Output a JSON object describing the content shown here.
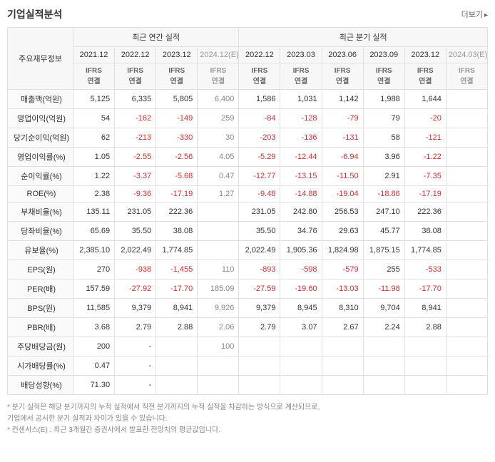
{
  "title": "기업실적분석",
  "more_link": "더보기",
  "group_headers": {
    "annual": "최근 연간 실적",
    "quarterly": "최근 분기 실적"
  },
  "first_col_header": "주요재무정보",
  "periods": {
    "annual": [
      "2021.12",
      "2022.12",
      "2023.12",
      "2024.12(E)"
    ],
    "quarterly": [
      "2022.12",
      "2023.03",
      "2023.06",
      "2023.09",
      "2023.12",
      "2024.03(E)"
    ]
  },
  "sub_header": "IFRS 연결",
  "rows": [
    {
      "label": "매출액(억원)",
      "annual": [
        "5,125",
        "6,335",
        "5,805",
        "6,400"
      ],
      "quarterly": [
        "1,586",
        "1,031",
        "1,142",
        "1,988",
        "1,644",
        ""
      ]
    },
    {
      "label": "영업이익(억원)",
      "annual": [
        "54",
        "-162",
        "-149",
        "259"
      ],
      "quarterly": [
        "-84",
        "-128",
        "-79",
        "79",
        "-20",
        ""
      ]
    },
    {
      "label": "당기순이익(억원)",
      "annual": [
        "62",
        "-213",
        "-330",
        "30"
      ],
      "quarterly": [
        "-203",
        "-136",
        "-131",
        "58",
        "-121",
        ""
      ]
    },
    {
      "label": "영업이익률(%)",
      "annual": [
        "1.05",
        "-2.55",
        "-2.56",
        "4.05"
      ],
      "quarterly": [
        "-5.29",
        "-12.44",
        "-6.94",
        "3.96",
        "-1.22",
        ""
      ]
    },
    {
      "label": "순이익률(%)",
      "annual": [
        "1.22",
        "-3.37",
        "-5.68",
        "0.47"
      ],
      "quarterly": [
        "-12.77",
        "-13.15",
        "-11.50",
        "2.91",
        "-7.35",
        ""
      ]
    },
    {
      "label": "ROE(%)",
      "annual": [
        "2.38",
        "-9.36",
        "-17.19",
        "1.27"
      ],
      "quarterly": [
        "-9.48",
        "-14.88",
        "-19.04",
        "-18.86",
        "-17.19",
        ""
      ]
    },
    {
      "label": "부채비율(%)",
      "annual": [
        "135.11",
        "231.05",
        "222.36",
        ""
      ],
      "quarterly": [
        "231.05",
        "242.80",
        "256.53",
        "247.10",
        "222.36",
        ""
      ]
    },
    {
      "label": "당좌비율(%)",
      "annual": [
        "65.69",
        "35.50",
        "38.08",
        ""
      ],
      "quarterly": [
        "35.50",
        "34.76",
        "29.63",
        "45.77",
        "38.08",
        ""
      ]
    },
    {
      "label": "유보율(%)",
      "annual": [
        "2,385.10",
        "2,022.49",
        "1,774.85",
        ""
      ],
      "quarterly": [
        "2,022.49",
        "1,905.36",
        "1,824.98",
        "1,875.15",
        "1,774.85",
        ""
      ]
    },
    {
      "label": "EPS(원)",
      "annual": [
        "270",
        "-938",
        "-1,455",
        "110"
      ],
      "quarterly": [
        "-893",
        "-598",
        "-579",
        "255",
        "-533",
        ""
      ]
    },
    {
      "label": "PER(배)",
      "annual": [
        "157.59",
        "-27.92",
        "-17.70",
        "185.09"
      ],
      "quarterly": [
        "-27.59",
        "-19.60",
        "-13.03",
        "-11.98",
        "-17.70",
        ""
      ]
    },
    {
      "label": "BPS(원)",
      "annual": [
        "11,585",
        "9,379",
        "8,941",
        "9,926"
      ],
      "quarterly": [
        "9,379",
        "8,945",
        "8,310",
        "9,704",
        "8,941",
        ""
      ]
    },
    {
      "label": "PBR(배)",
      "annual": [
        "3.68",
        "2.79",
        "2.88",
        "2.06"
      ],
      "quarterly": [
        "2.79",
        "3.07",
        "2.67",
        "2.24",
        "2.88",
        ""
      ]
    },
    {
      "label": "주당배당금(원)",
      "annual": [
        "200",
        "-",
        "",
        "100"
      ],
      "quarterly": [
        "",
        "",
        "",
        "",
        "",
        ""
      ]
    },
    {
      "label": "시가배당률(%)",
      "annual": [
        "0.47",
        "-",
        "",
        ""
      ],
      "quarterly": [
        "",
        "",
        "",
        "",
        "",
        ""
      ]
    },
    {
      "label": "배당성향(%)",
      "annual": [
        "71.30",
        "-",
        "",
        ""
      ],
      "quarterly": [
        "",
        "",
        "",
        "",
        "",
        ""
      ]
    }
  ],
  "footnotes": [
    "* 분기 실적은 해당 분기까지의 누적 실적에서 직전 분기까지의 누적 실적을 차감하는 방식으로 계산되므로,",
    "  기업에서 공시한 분기 실적과 차이가 있을 수 있습니다.",
    "* 컨센서스(E) : 최근 3개월간 증권사에서 발표한 전망치의 평균값입니다."
  ],
  "colors": {
    "border": "#e0e0e0",
    "header_bg": "#f7f7f7",
    "negative": "#d32f2f",
    "text": "#333333",
    "muted": "#888888"
  }
}
